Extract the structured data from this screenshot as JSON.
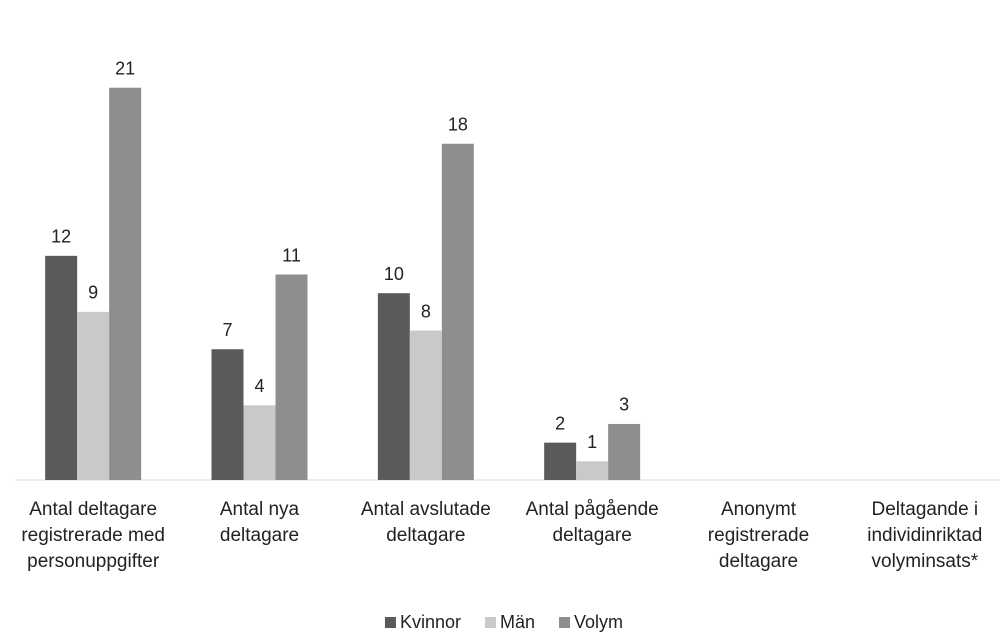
{
  "chart_data": {
    "type": "bar",
    "categories": [
      "Antal  deltagare\nregistrerade med\npersonuppgifter",
      "Antal nya\ndeltagare",
      "Antal avslutade\ndeltagare",
      "Antal pågående\ndeltagare",
      "Anonymt\nregistrerade\ndeltagare",
      "Deltagande i\nindividinriktad\nvolyminsats*"
    ],
    "series": [
      {
        "name": "Kvinnor",
        "color": "#5a5a5a",
        "values": [
          12,
          7,
          10,
          2,
          null,
          null
        ]
      },
      {
        "name": "Män",
        "color": "#c9c9c9",
        "values": [
          9,
          4,
          8,
          1,
          null,
          null
        ]
      },
      {
        "name": "Volym",
        "color": "#8e8e8e",
        "values": [
          21,
          11,
          18,
          3,
          null,
          null
        ]
      }
    ],
    "ylim": [
      0,
      25
    ],
    "legend": "bottom"
  }
}
